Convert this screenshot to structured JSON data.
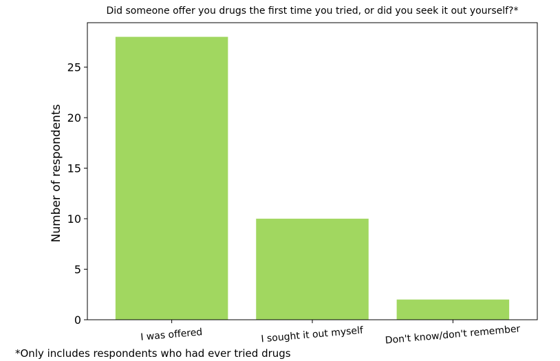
{
  "chart_data": {
    "type": "bar",
    "title": "Did someone offer you drugs the first time you tried, or did you seek it out yourself?*",
    "xlabel": "",
    "ylabel": "Number of respondents",
    "categories": [
      "I was offered",
      "I sought it out myself",
      "Don't know/don't remember"
    ],
    "values": [
      28,
      10,
      2
    ],
    "ylim": [
      0,
      29.4
    ],
    "yticks": [
      0,
      5,
      10,
      15,
      20,
      25
    ],
    "bar_color": "#a1d760",
    "grid": false,
    "legend": "none",
    "footnote": "*Only includes respondents who had ever tried drugs"
  }
}
